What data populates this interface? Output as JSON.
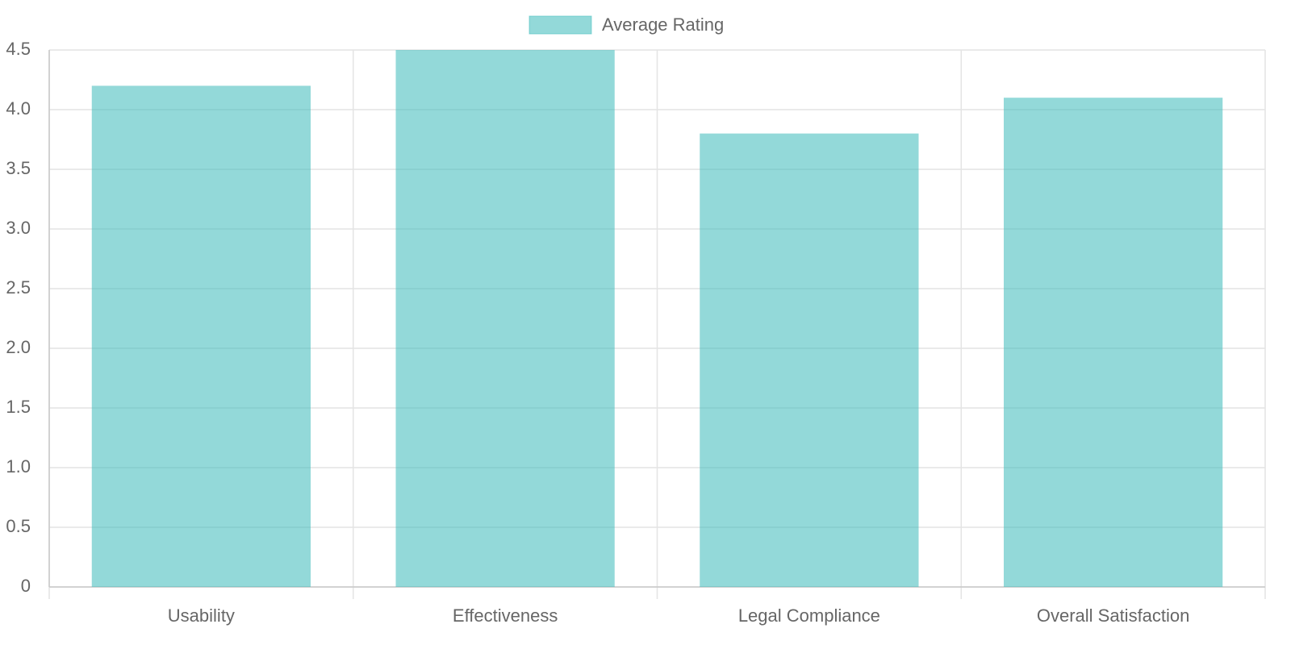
{
  "chart_data": {
    "type": "bar",
    "categories": [
      "Usability",
      "Effectiveness",
      "Legal Compliance",
      "Overall Satisfaction"
    ],
    "series": [
      {
        "name": "Average Rating",
        "color": "rgba(75, 192, 192, 0.6)",
        "values": [
          4.2,
          4.5,
          3.8,
          4.1
        ]
      }
    ],
    "ylim": [
      0,
      4.5
    ],
    "yticks": [
      0,
      0.5,
      {
        "value": 1,
        "label": "1.0"
      },
      1.5,
      {
        "value": 2,
        "label": "2.0"
      },
      2.5,
      {
        "value": 3,
        "label": "3.0"
      },
      3.5,
      {
        "value": 4,
        "label": "4.0"
      },
      4.5
    ],
    "grid": true,
    "legend": "top"
  }
}
